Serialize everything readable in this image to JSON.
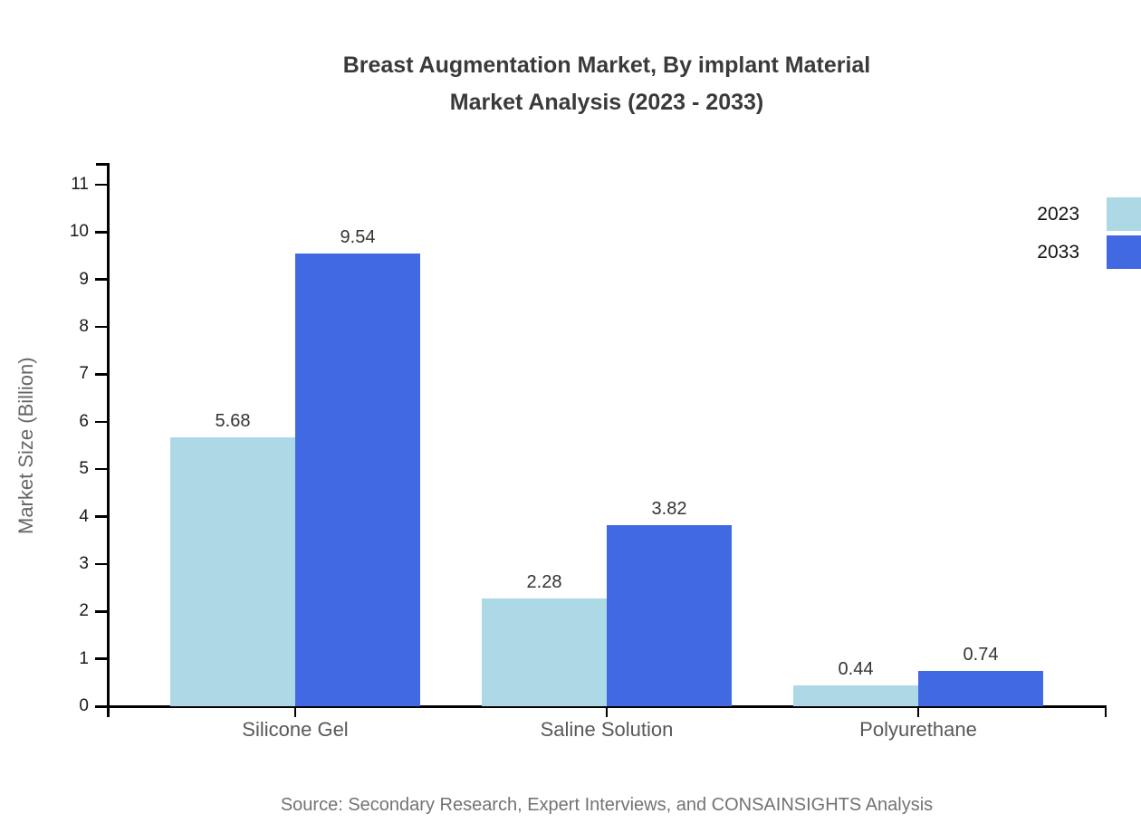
{
  "title": {
    "line1": "Breast Augmentation Market, By implant Material",
    "line2": "Market Analysis (2023 - 2033)"
  },
  "source": "Source: Secondary Research, Expert Interviews, and CONSAINSIGHTS Analysis",
  "chart_data": {
    "type": "bar",
    "title": "Breast Augmentation Market, By implant Material Market Analysis (2023 - 2033)",
    "categories": [
      "Silicone Gel",
      "Saline Solution",
      "Polyurethane"
    ],
    "series": [
      {
        "name": "2023",
        "color": "#ADD8E6",
        "values": [
          5.68,
          2.28,
          0.44
        ]
      },
      {
        "name": "2033",
        "color": "#4169E1",
        "values": [
          9.54,
          3.82,
          0.74
        ]
      }
    ],
    "xlabel": "",
    "ylabel": "Market Size (Billion)",
    "ylim": [
      0,
      11
    ],
    "yticks": [
      0,
      1,
      2,
      3,
      4,
      5,
      6,
      7,
      8,
      9,
      10,
      11
    ],
    "grid": false,
    "legend_position": "top-right",
    "value_labels": true,
    "axis_color": "#000000",
    "text_color": "#1a1a1a"
  }
}
